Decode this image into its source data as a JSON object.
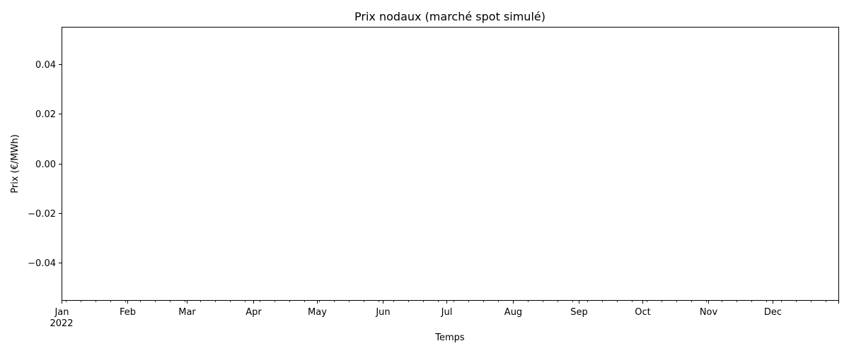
{
  "chart_data": {
    "type": "line",
    "title": "Prix nodaux (marché spot simulé)",
    "xlabel": "Temps",
    "ylabel": "Prix (€/MWh)",
    "x_year_label": "2022",
    "x": [],
    "series": [],
    "xlim": [
      "2022-01-01",
      "2022-12-31"
    ],
    "ylim": [
      -0.055,
      0.055
    ],
    "x_major_ticks": [
      {
        "date": "2022-01-01",
        "label": "Jan"
      },
      {
        "date": "2022-02-01",
        "label": "Feb"
      },
      {
        "date": "2022-03-01",
        "label": "Mar"
      },
      {
        "date": "2022-04-01",
        "label": "Apr"
      },
      {
        "date": "2022-05-01",
        "label": "May"
      },
      {
        "date": "2022-06-01",
        "label": "Jun"
      },
      {
        "date": "2022-07-01",
        "label": "Jul"
      },
      {
        "date": "2022-08-01",
        "label": "Aug"
      },
      {
        "date": "2022-09-01",
        "label": "Sep"
      },
      {
        "date": "2022-10-01",
        "label": "Oct"
      },
      {
        "date": "2022-11-01",
        "label": "Nov"
      },
      {
        "date": "2022-12-01",
        "label": "Dec"
      }
    ],
    "y_ticks": [
      {
        "value": 0.04,
        "label": "0.04"
      },
      {
        "value": 0.02,
        "label": "0.02"
      },
      {
        "value": 0.0,
        "label": "0.00"
      },
      {
        "value": -0.02,
        "label": "−0.02"
      },
      {
        "value": -0.04,
        "label": "−0.04"
      }
    ],
    "grid": false
  }
}
